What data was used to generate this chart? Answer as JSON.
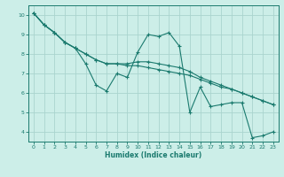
{
  "xlabel": "Humidex (Indice chaleur)",
  "xlim": [
    -0.5,
    23.5
  ],
  "ylim": [
    3.5,
    10.5
  ],
  "xticks": [
    0,
    1,
    2,
    3,
    4,
    5,
    6,
    7,
    8,
    9,
    10,
    11,
    12,
    13,
    14,
    15,
    16,
    17,
    18,
    19,
    20,
    21,
    22,
    23
  ],
  "yticks": [
    4,
    5,
    6,
    7,
    8,
    9,
    10
  ],
  "background_color": "#cceee8",
  "grid_color": "#aad4ce",
  "line_color": "#1a7a6e",
  "line1_x": [
    0,
    1,
    2,
    3,
    4,
    5,
    6,
    7,
    8,
    9,
    10,
    11,
    12,
    13,
    14,
    15,
    16,
    17,
    18,
    19,
    20,
    21,
    22,
    23
  ],
  "line1_y": [
    10.1,
    9.5,
    9.1,
    8.6,
    8.3,
    7.5,
    6.4,
    6.1,
    7.0,
    6.8,
    8.1,
    9.0,
    8.9,
    9.1,
    8.4,
    5.0,
    6.3,
    5.3,
    5.4,
    5.5,
    5.5,
    3.7,
    3.8,
    4.0
  ],
  "line2_x": [
    0,
    1,
    2,
    3,
    4,
    5,
    6,
    7,
    8,
    9,
    10,
    11,
    12,
    13,
    14,
    15,
    16,
    17,
    18,
    19,
    20,
    21,
    22,
    23
  ],
  "line2_y": [
    10.1,
    9.5,
    9.1,
    8.6,
    8.3,
    8.0,
    7.7,
    7.5,
    7.5,
    7.4,
    7.4,
    7.3,
    7.2,
    7.1,
    7.0,
    6.9,
    6.7,
    6.5,
    6.3,
    6.2,
    6.0,
    5.8,
    5.6,
    5.4
  ],
  "line3_x": [
    0,
    1,
    2,
    3,
    4,
    5,
    6,
    7,
    8,
    9,
    10,
    11,
    12,
    13,
    14,
    15,
    16,
    17,
    18,
    19,
    20,
    21,
    22,
    23
  ],
  "line3_y": [
    10.1,
    9.5,
    9.1,
    8.6,
    8.3,
    8.0,
    7.7,
    7.5,
    7.5,
    7.5,
    7.6,
    7.6,
    7.5,
    7.4,
    7.3,
    7.1,
    6.8,
    6.6,
    6.4,
    6.2,
    6.0,
    5.8,
    5.6,
    5.4
  ]
}
